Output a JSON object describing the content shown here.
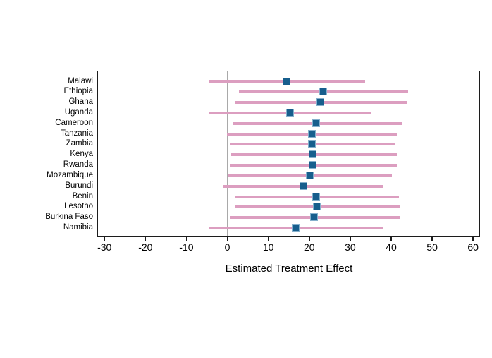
{
  "chart_data": {
    "type": "scatter",
    "subtype": "forest-plot-with-confidence-intervals",
    "title": "",
    "xlabel": "Estimated Treatment Effect",
    "ylabel": "",
    "xlim": [
      -31.5,
      61.6
    ],
    "xticks": [
      -30,
      -20,
      -10,
      0,
      10,
      20,
      30,
      40,
      50,
      60
    ],
    "reference_line_x": 0,
    "grid": false,
    "legend": "none",
    "categories": [
      "Malawi",
      "Ethiopia",
      "Ghana",
      "Uganda",
      "Cameroon",
      "Tanzania",
      "Zambia",
      "Kenya",
      "Rwanda",
      "Mozambique",
      "Burundi",
      "Benin",
      "Lesotho",
      "Burkina Faso",
      "Namibia"
    ],
    "series": [
      {
        "name": "Estimated Treatment Effect",
        "values": [
          14.6,
          23.5,
          22.8,
          15.4,
          21.9,
          20.8,
          20.8,
          21.0,
          21.0,
          20.3,
          18.7,
          21.9,
          22.1,
          21.4,
          16.9
        ],
        "ci_low": [
          -4.5,
          3.0,
          2.0,
          -4.3,
          1.3,
          0.0,
          0.7,
          1.0,
          0.9,
          0.4,
          -1.0,
          2.1,
          2.1,
          0.7,
          -4.5
        ],
        "ci_high": [
          33.7,
          44.2,
          44.0,
          35.1,
          42.6,
          41.4,
          41.2,
          41.5,
          41.4,
          40.3,
          38.2,
          41.9,
          42.2,
          42.1,
          38.2
        ]
      }
    ],
    "colors": {
      "ci_line": "#dc9ec0",
      "marker_fill": "#175e8d",
      "marker_border": "#84afcc",
      "reference_line": "#a9a9a9",
      "frame": "#1c1c1c",
      "text": "#000000"
    }
  }
}
